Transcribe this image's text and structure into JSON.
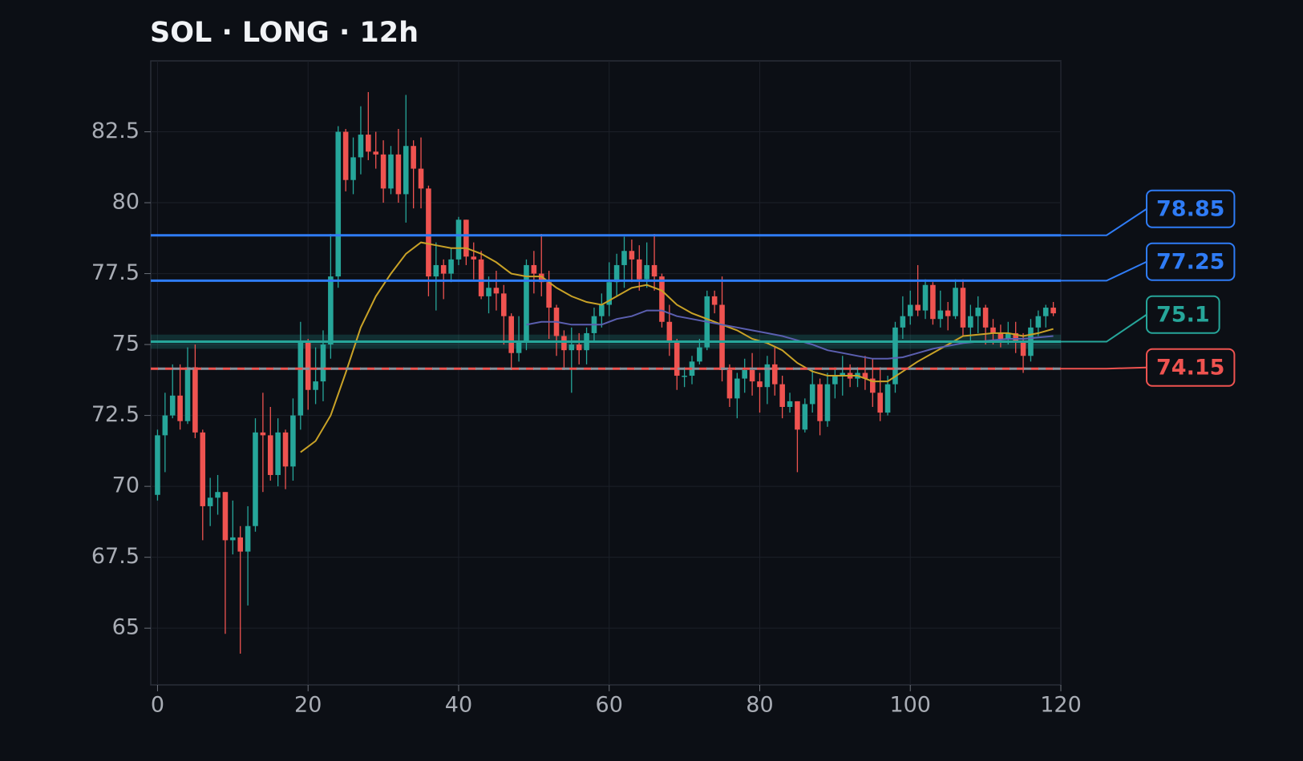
{
  "chart_data": {
    "type": "candlestick",
    "title": "SOL · LONG · 12h",
    "x": [
      0,
      1,
      2,
      3,
      4,
      5,
      6,
      7,
      8,
      9,
      10,
      11,
      12,
      13,
      14,
      15,
      16,
      17,
      18,
      19,
      20,
      21,
      22,
      23,
      24,
      25,
      26,
      27,
      28,
      29,
      30,
      31,
      32,
      33,
      34,
      35,
      36,
      37,
      38,
      39,
      40,
      41,
      42,
      43,
      44,
      45,
      46,
      47,
      48,
      49,
      50,
      51,
      52,
      53,
      54,
      55,
      56,
      57,
      58,
      59,
      60,
      61,
      62,
      63,
      64,
      65,
      66,
      67,
      68,
      69,
      70,
      71,
      72,
      73,
      74,
      75,
      76,
      77,
      78,
      79,
      80,
      81,
      82,
      83,
      84,
      85,
      86,
      87,
      88,
      89,
      90,
      91,
      92,
      93,
      94,
      95,
      96,
      97,
      98,
      99,
      100,
      101,
      102,
      103,
      104,
      105,
      106,
      107,
      108,
      109,
      110,
      111,
      112,
      113,
      114,
      115,
      116,
      117,
      118,
      119
    ],
    "open": [
      69.7,
      71.8,
      72.5,
      73.2,
      72.3,
      74.2,
      71.9,
      69.3,
      69.6,
      69.8,
      68.1,
      68.2,
      67.7,
      68.6,
      71.9,
      71.8,
      70.4,
      71.9,
      70.7,
      72.5,
      75.1,
      73.4,
      73.7,
      75.0,
      77.4,
      82.5,
      80.8,
      81.6,
      82.4,
      81.8,
      81.7,
      80.5,
      81.7,
      80.3,
      82.0,
      81.2,
      80.5,
      77.4,
      77.8,
      77.5,
      78.0,
      79.4,
      78.1,
      78.0,
      76.7,
      77.0,
      76.8,
      76.0,
      74.7,
      75.1,
      77.8,
      77.5,
      77.2,
      76.3,
      75.3,
      74.8,
      75.0,
      74.8,
      75.4,
      76.0,
      76.4,
      77.2,
      77.8,
      78.3,
      78.0,
      77.3,
      77.8,
      77.4,
      75.8,
      75.1,
      73.9,
      73.9,
      74.4,
      74.9,
      76.7,
      76.4,
      74.1,
      73.1,
      73.8,
      74.1,
      73.7,
      73.5,
      74.3,
      73.6,
      72.8,
      73.0,
      72.0,
      72.9,
      73.6,
      72.3,
      73.6,
      73.9,
      74.0,
      73.8,
      74.0,
      73.8,
      73.3,
      72.6,
      73.6,
      75.6,
      76.0,
      76.4,
      76.2,
      77.1,
      75.9,
      76.2,
      76.0,
      77.0,
      75.6,
      76.0,
      76.3,
      75.6,
      75.4,
      75.2,
      75.4,
      75.1,
      74.6,
      75.6,
      76.0,
      76.3
    ],
    "high": [
      72.0,
      73.3,
      74.3,
      74.3,
      74.9,
      75.0,
      72.0,
      70.3,
      70.4,
      69.8,
      69.5,
      68.6,
      69.3,
      72.4,
      73.3,
      72.8,
      72.4,
      72.0,
      73.1,
      75.8,
      75.2,
      74.9,
      75.5,
      78.9,
      82.7,
      82.6,
      82.3,
      83.4,
      83.9,
      82.5,
      82.2,
      82.0,
      82.6,
      83.8,
      82.2,
      82.3,
      80.6,
      78.6,
      78.0,
      78.4,
      79.5,
      79.4,
      78.6,
      78.3,
      77.4,
      77.6,
      77.1,
      76.1,
      76.0,
      78.0,
      78.3,
      78.9,
      77.6,
      76.4,
      75.5,
      75.6,
      75.4,
      75.6,
      76.3,
      76.8,
      77.9,
      78.2,
      78.8,
      78.7,
      78.5,
      78.6,
      78.9,
      77.5,
      76.4,
      75.2,
      74.2,
      74.6,
      75.2,
      76.9,
      76.9,
      77.4,
      74.3,
      74.0,
      74.5,
      74.7,
      74.0,
      74.6,
      74.9,
      73.9,
      73.3,
      73.0,
      73.1,
      74.1,
      73.8,
      74.0,
      74.2,
      74.6,
      74.3,
      74.2,
      74.6,
      74.5,
      74.2,
      73.9,
      75.8,
      76.7,
      76.9,
      77.8,
      77.3,
      77.2,
      76.9,
      76.5,
      77.3,
      77.3,
      76.4,
      76.7,
      76.4,
      75.9,
      75.7,
      75.8,
      75.8,
      75.4,
      75.9,
      76.2,
      76.4,
      76.5
    ],
    "low": [
      69.5,
      70.5,
      72.4,
      72.0,
      72.2,
      71.7,
      68.1,
      68.6,
      69.0,
      64.8,
      67.6,
      64.1,
      65.8,
      68.4,
      69.8,
      70.2,
      70.0,
      69.9,
      70.2,
      72.0,
      72.7,
      72.9,
      73.0,
      74.5,
      77.0,
      80.4,
      80.3,
      81.0,
      81.5,
      81.2,
      80.0,
      80.3,
      80.0,
      79.3,
      79.8,
      79.8,
      76.7,
      76.2,
      76.6,
      77.2,
      77.8,
      77.8,
      77.3,
      76.6,
      76.1,
      76.2,
      75.0,
      74.1,
      74.4,
      74.8,
      76.8,
      76.7,
      75.2,
      74.6,
      74.1,
      73.3,
      74.3,
      74.3,
      75.1,
      75.6,
      76.0,
      76.7,
      77.0,
      77.2,
      76.9,
      77.0,
      76.9,
      75.6,
      74.6,
      73.4,
      73.5,
      73.6,
      74.3,
      74.8,
      76.1,
      73.7,
      72.8,
      72.4,
      73.3,
      73.2,
      72.6,
      72.9,
      73.2,
      72.4,
      72.6,
      70.5,
      71.9,
      72.6,
      71.8,
      72.1,
      73.1,
      73.2,
      73.5,
      73.5,
      73.4,
      72.8,
      72.3,
      72.5,
      73.3,
      75.2,
      75.7,
      76.0,
      75.9,
      75.7,
      75.6,
      75.5,
      75.9,
      75.3,
      75.1,
      75.4,
      75.0,
      75.0,
      74.9,
      75.0,
      74.7,
      74.0,
      74.4,
      75.3,
      75.6,
      76.0
    ],
    "close": [
      71.8,
      72.5,
      73.2,
      72.3,
      74.2,
      71.9,
      69.3,
      69.6,
      69.8,
      68.1,
      68.2,
      67.7,
      68.6,
      71.9,
      71.8,
      70.4,
      71.9,
      70.7,
      72.5,
      75.1,
      73.4,
      73.7,
      75.0,
      77.4,
      82.5,
      80.8,
      81.6,
      82.4,
      81.8,
      81.7,
      80.5,
      81.7,
      80.3,
      82.0,
      81.2,
      80.5,
      77.4,
      77.8,
      77.5,
      78.0,
      79.4,
      78.1,
      78.0,
      76.7,
      77.0,
      76.8,
      76.0,
      74.7,
      75.1,
      77.8,
      77.5,
      77.2,
      76.3,
      75.3,
      74.8,
      75.0,
      74.8,
      75.4,
      76.0,
      76.4,
      77.2,
      77.8,
      78.3,
      78.0,
      77.3,
      77.8,
      77.4,
      75.8,
      75.1,
      73.9,
      73.9,
      74.4,
      74.9,
      76.7,
      76.4,
      74.1,
      73.1,
      73.8,
      74.1,
      73.7,
      73.5,
      74.3,
      73.6,
      72.8,
      73.0,
      72.0,
      72.9,
      73.6,
      72.3,
      73.6,
      73.9,
      74.0,
      73.8,
      74.0,
      73.8,
      73.3,
      72.6,
      73.6,
      75.6,
      76.0,
      76.4,
      76.2,
      77.1,
      75.9,
      76.2,
      76.0,
      77.0,
      75.6,
      76.0,
      76.3,
      75.6,
      75.4,
      75.2,
      75.4,
      75.1,
      74.6,
      75.6,
      76.0,
      76.3,
      76.1
    ],
    "up_color": "#26a69a",
    "down_color": "#ef5350",
    "lines": [
      {
        "color": "#c9a227",
        "x": [
          19,
          21,
          23,
          25,
          27,
          29,
          31,
          33,
          35,
          37,
          39,
          41,
          43,
          45,
          47,
          49,
          51,
          53,
          55,
          57,
          59,
          61,
          63,
          65,
          67,
          69,
          71,
          73,
          75,
          77,
          79,
          81,
          83,
          85,
          87,
          89,
          91,
          93,
          95,
          97,
          99,
          101,
          103,
          105,
          107,
          109,
          111,
          113,
          115,
          117,
          119
        ],
        "values": [
          71.2,
          71.6,
          72.5,
          74.0,
          75.6,
          76.7,
          77.5,
          78.2,
          78.6,
          78.5,
          78.4,
          78.4,
          78.2,
          77.9,
          77.5,
          77.4,
          77.4,
          77.0,
          76.7,
          76.5,
          76.4,
          76.7,
          77.0,
          77.1,
          76.9,
          76.4,
          76.1,
          75.9,
          75.7,
          75.5,
          75.2,
          75.05,
          74.8,
          74.35,
          74.05,
          73.9,
          73.9,
          73.9,
          73.7,
          73.7,
          74.05,
          74.4,
          74.7,
          75.0,
          75.3,
          75.35,
          75.4,
          75.4,
          75.3,
          75.4,
          75.55
        ]
      },
      {
        "color": "#5b5fb0",
        "x": [
          49,
          51,
          53,
          55,
          57,
          59,
          61,
          63,
          65,
          67,
          69,
          71,
          73,
          75,
          77,
          79,
          81,
          83,
          85,
          87,
          89,
          91,
          93,
          95,
          97,
          99,
          101,
          103,
          105,
          107,
          109,
          111,
          113,
          115,
          117,
          119
        ],
        "values": [
          75.7,
          75.8,
          75.8,
          75.7,
          75.7,
          75.7,
          75.9,
          76.0,
          76.2,
          76.2,
          76.0,
          75.9,
          75.8,
          75.7,
          75.6,
          75.5,
          75.4,
          75.3,
          75.15,
          75.0,
          74.8,
          74.7,
          74.6,
          74.5,
          74.5,
          74.55,
          74.7,
          74.85,
          74.95,
          75.05,
          75.1,
          75.15,
          75.2,
          75.2,
          75.25,
          75.3
        ]
      }
    ],
    "levels": [
      {
        "value": 78.85,
        "color": "#2f7cf6",
        "style": "solid"
      },
      {
        "value": 77.25,
        "color": "#2f7cf6",
        "style": "solid"
      },
      {
        "value": 75.1,
        "color": "#26a69a",
        "style": "solid",
        "zone": [
          74.85,
          75.35
        ]
      },
      {
        "value": 74.15,
        "color": "#ef5350",
        "style": "dashed"
      }
    ],
    "xlim": [
      -0.9,
      120
    ],
    "ylim": [
      63,
      85
    ],
    "xticks": [
      0,
      20,
      40,
      60,
      80,
      100,
      120
    ],
    "yticks": [
      65,
      67.5,
      70,
      72.5,
      75,
      77.5,
      80,
      82.5
    ],
    "grid": true
  }
}
